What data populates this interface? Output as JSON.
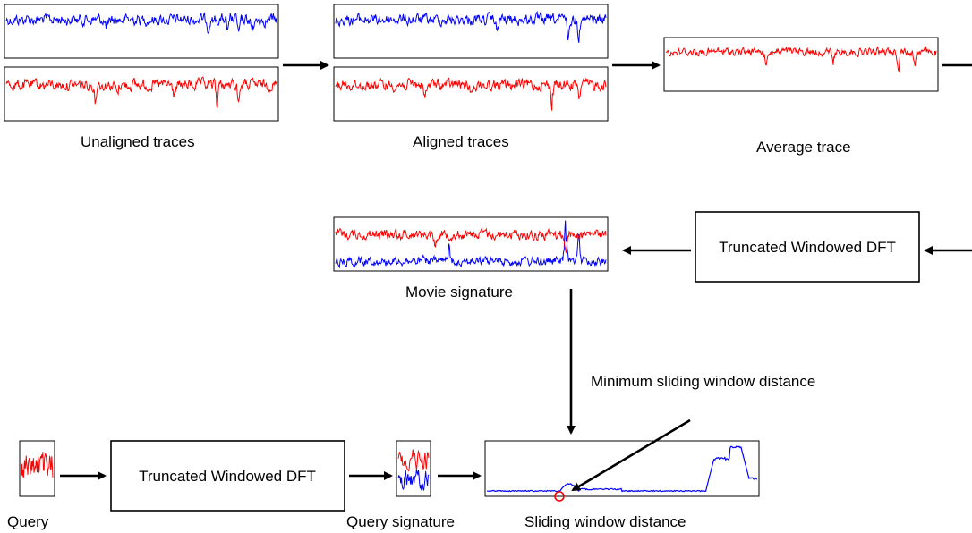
{
  "labels": {
    "unaligned": "Unaligned traces",
    "aligned": "Aligned traces",
    "average": "Average trace",
    "movie_signature": "Movie signature",
    "dft_top": "Truncated Windowed DFT",
    "dft_bottom": "Truncated Windowed DFT",
    "minimum": "Minimum sliding window distance",
    "query": "Query",
    "query_signature": "Query signature",
    "sliding": "Sliding window distance"
  },
  "colors": {
    "series_a": "#0000ff",
    "series_b": "#ff0000",
    "arrow": "#000000",
    "box_border": "#000000",
    "marker": "#ff0000"
  }
}
